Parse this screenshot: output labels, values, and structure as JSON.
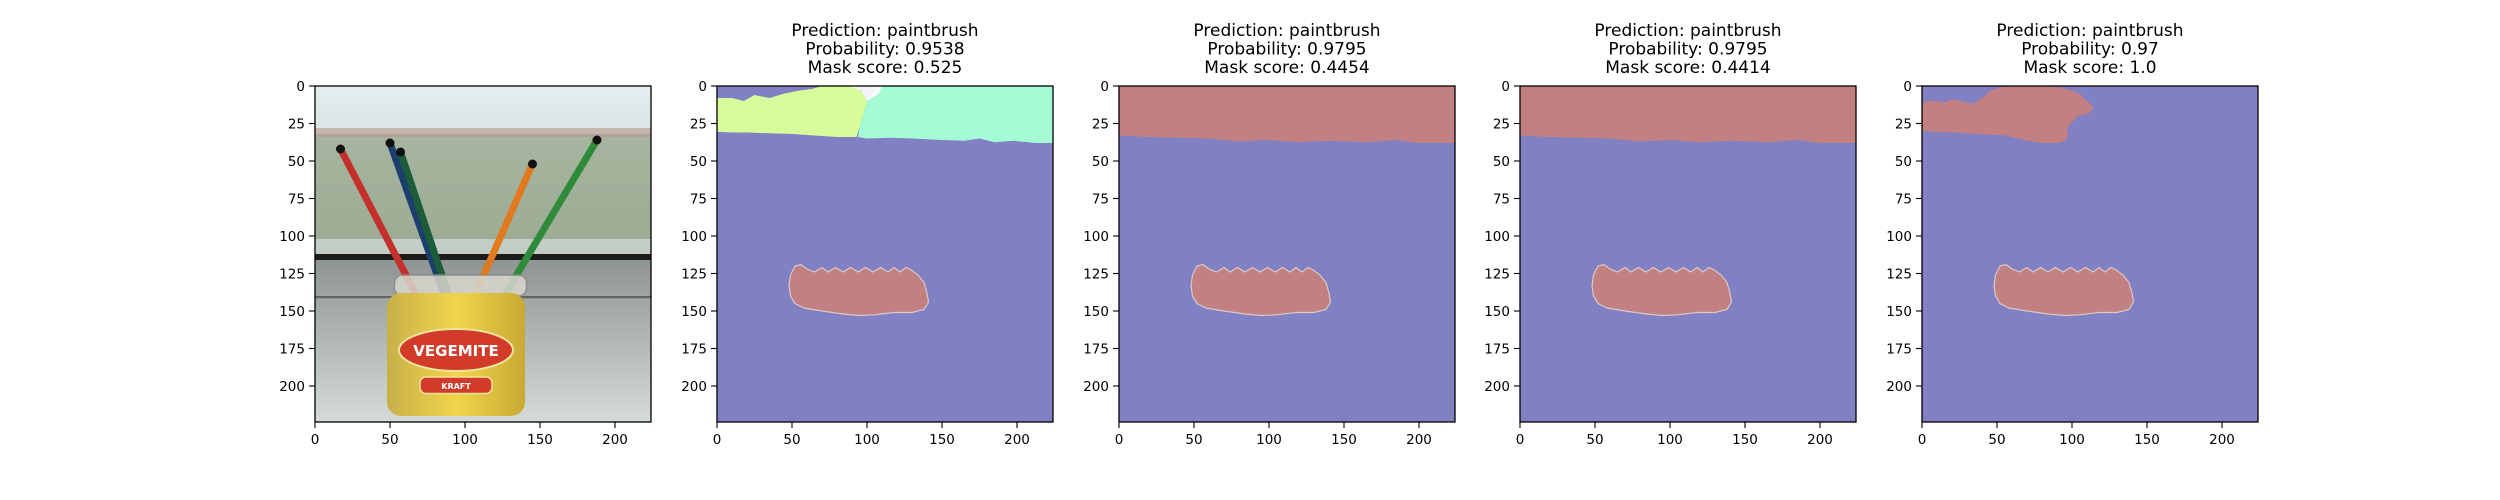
{
  "figure": {
    "panel_count": 5,
    "axis": {
      "xlim": [
        0,
        224
      ],
      "ylim": [
        224,
        0
      ],
      "xticks": [
        0,
        50,
        100,
        150,
        200
      ],
      "yticks": [
        0,
        25,
        50,
        75,
        100,
        125,
        150,
        175,
        200
      ],
      "y_inverted": true
    },
    "colors": {
      "background_class": "#8080c2",
      "object_class": "#c38082",
      "segment_yellow": "#d6fc9b",
      "segment_cyan": "#a5fbd6",
      "jar_label_red": "#d23b2a",
      "jar_yellow": "#e8c63a"
    }
  },
  "chart_data": [
    {
      "type": "image",
      "panel": 1,
      "content": "input photo: paintbrushes in a jar",
      "jar_label_text": "VEGEMITE",
      "jar_sub_text": "KRAFT",
      "xlim": [
        0,
        224
      ],
      "ylim": [
        224,
        0
      ]
    },
    {
      "type": "heatmap",
      "panel": 2,
      "title_lines": [
        "Prediction: paintbrush",
        "Probability: 0.9538",
        "Mask score: 0.525"
      ],
      "prediction": "paintbrush",
      "probability": 0.9538,
      "mask_score": 0.525,
      "regions": [
        "top-left yellow segment (x≈0–95, y≈0–35)",
        "top-right cyan segment (x≈95–224, y≈0–38)",
        "purple background",
        "salmon blob (x≈48–141, y≈121–153)"
      ],
      "xlim": [
        0,
        224
      ],
      "ylim": [
        224,
        0
      ]
    },
    {
      "type": "heatmap",
      "panel": 3,
      "title_lines": [
        "Prediction: paintbrush",
        "Probability: 0.9795",
        "Mask score: 0.4454"
      ],
      "prediction": "paintbrush",
      "probability": 0.9795,
      "mask_score": 0.4454,
      "regions": [
        "salmon top band (y≈0–38)",
        "purple background",
        "salmon blob (x≈48–141, y≈121–153)"
      ],
      "xlim": [
        0,
        224
      ],
      "ylim": [
        224,
        0
      ]
    },
    {
      "type": "heatmap",
      "panel": 4,
      "title_lines": [
        "Prediction: paintbrush",
        "Probability: 0.9795",
        "Mask score: 0.4414"
      ],
      "prediction": "paintbrush",
      "probability": 0.9795,
      "mask_score": 0.4414,
      "regions": [
        "salmon top band (y≈0–38)",
        "purple background",
        "salmon blob (x≈48–141, y≈121–153)"
      ],
      "xlim": [
        0,
        224
      ],
      "ylim": [
        224,
        0
      ]
    },
    {
      "type": "heatmap",
      "panel": 5,
      "title_lines": [
        "Prediction: paintbrush",
        "Probability: 0.97",
        "Mask score: 1.0"
      ],
      "prediction": "paintbrush",
      "probability": 0.97,
      "mask_score": 1.0,
      "regions": [
        "salmon top-left blob (x≈0–115, y≈0–38)",
        "purple background",
        "salmon blob (x≈48–141, y≈121–153)"
      ],
      "xlim": [
        0,
        224
      ],
      "ylim": [
        224,
        0
      ]
    }
  ]
}
